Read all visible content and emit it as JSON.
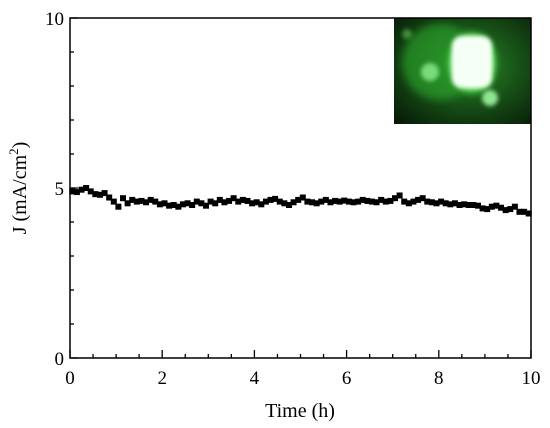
{
  "chart_data": {
    "type": "scatter",
    "xlabel": "Time (h)",
    "ylabel": {
      "prefix": "J (mA/cm",
      "superscript": "2",
      "suffix": ")"
    },
    "xlim": [
      0,
      10
    ],
    "ylim": [
      0,
      10
    ],
    "x_ticks": [
      "0",
      "2",
      "4",
      "6",
      "8",
      "10"
    ],
    "y_ticks": [
      "0",
      "5",
      "10"
    ],
    "x_minor_step": 0.5,
    "y_minor_step": 1,
    "grid": false,
    "marker": "square",
    "marker_color": "#000000",
    "inset": {
      "description_icon": "green-electroluminescence-photo",
      "position": "top-right",
      "colors": {
        "background": "#0a200a",
        "glow": "#36d836",
        "core": "#f4fff4"
      }
    },
    "series": [
      {
        "x": [
          0.05,
          0.15,
          0.25,
          0.35,
          0.45,
          0.55,
          0.65,
          0.75,
          0.85,
          0.95,
          1.05,
          1.15,
          1.25,
          1.35,
          1.45,
          1.55,
          1.65,
          1.75,
          1.85,
          1.95,
          2.05,
          2.15,
          2.25,
          2.35,
          2.45,
          2.55,
          2.65,
          2.75,
          2.85,
          2.95,
          3.05,
          3.15,
          3.25,
          3.35,
          3.45,
          3.55,
          3.65,
          3.75,
          3.85,
          3.95,
          4.05,
          4.15,
          4.25,
          4.35,
          4.45,
          4.55,
          4.65,
          4.75,
          4.85,
          4.95,
          5.05,
          5.15,
          5.25,
          5.35,
          5.45,
          5.55,
          5.65,
          5.75,
          5.85,
          5.95,
          6.05,
          6.15,
          6.25,
          6.35,
          6.45,
          6.55,
          6.65,
          6.75,
          6.85,
          6.95,
          7.05,
          7.15,
          7.25,
          7.35,
          7.45,
          7.55,
          7.65,
          7.75,
          7.85,
          7.95,
          8.05,
          8.15,
          8.25,
          8.35,
          8.45,
          8.55,
          8.65,
          8.75,
          8.85,
          8.95,
          9.05,
          9.15,
          9.25,
          9.35,
          9.45,
          9.55,
          9.65,
          9.75,
          9.85,
          9.95
        ],
        "y": [
          4.9,
          4.88,
          4.95,
          5.0,
          4.9,
          4.82,
          4.8,
          4.85,
          4.72,
          4.6,
          4.45,
          4.7,
          4.55,
          4.65,
          4.6,
          4.62,
          4.58,
          4.65,
          4.6,
          4.52,
          4.55,
          4.48,
          4.5,
          4.45,
          4.52,
          4.55,
          4.5,
          4.6,
          4.55,
          4.48,
          4.6,
          4.55,
          4.65,
          4.58,
          4.62,
          4.7,
          4.6,
          4.65,
          4.62,
          4.55,
          4.58,
          4.52,
          4.6,
          4.65,
          4.68,
          4.6,
          4.55,
          4.5,
          4.58,
          4.65,
          4.72,
          4.6,
          4.58,
          4.55,
          4.6,
          4.65,
          4.58,
          4.62,
          4.6,
          4.63,
          4.6,
          4.58,
          4.6,
          4.65,
          4.62,
          4.6,
          4.58,
          4.65,
          4.6,
          4.62,
          4.7,
          4.78,
          4.6,
          4.55,
          4.6,
          4.65,
          4.7,
          4.6,
          4.58,
          4.55,
          4.6,
          4.55,
          4.52,
          4.55,
          4.5,
          4.52,
          4.5,
          4.5,
          4.48,
          4.4,
          4.38,
          4.45,
          4.48,
          4.42,
          4.35,
          4.38,
          4.45,
          4.3,
          4.3,
          4.25
        ]
      }
    ]
  }
}
